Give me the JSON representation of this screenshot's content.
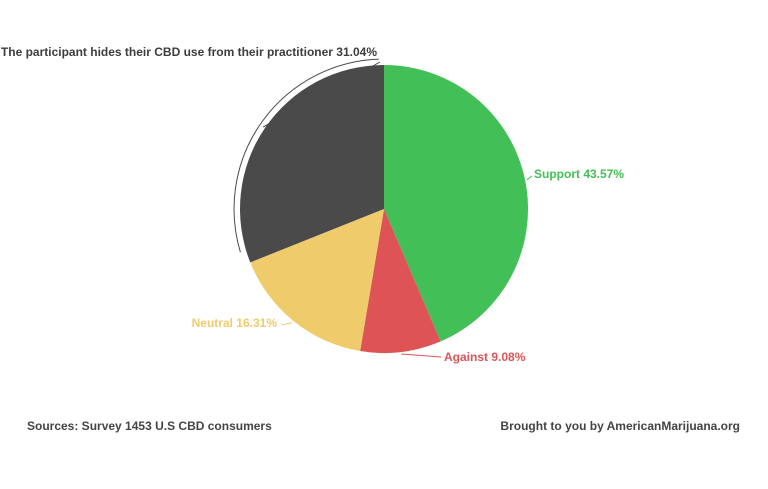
{
  "chart_data": {
    "type": "pie",
    "title": "",
    "slices": [
      {
        "label": "Support",
        "value": 43.57,
        "display": "Support 43.57%",
        "color": "#42bf56"
      },
      {
        "label": "Against",
        "value": 9.08,
        "display": "Against 9.08%",
        "color": "#de5456"
      },
      {
        "label": "Neutral",
        "value": 16.31,
        "display": "Neutral 16.31%",
        "color": "#efcb6b"
      },
      {
        "label": "The participant hides their CBD use from their practitioner",
        "value": 31.04,
        "display": "The participant hides their CBD use from their practitioner 31.04%",
        "color": "#4a4a4a"
      }
    ],
    "legend": "none",
    "start_angle_deg": 0,
    "direction": "clockwise"
  },
  "footer": {
    "source": "Sources: Survey 1453 U.S CBD consumers",
    "credit": "Brought to you by AmericanMarijuana.org"
  }
}
